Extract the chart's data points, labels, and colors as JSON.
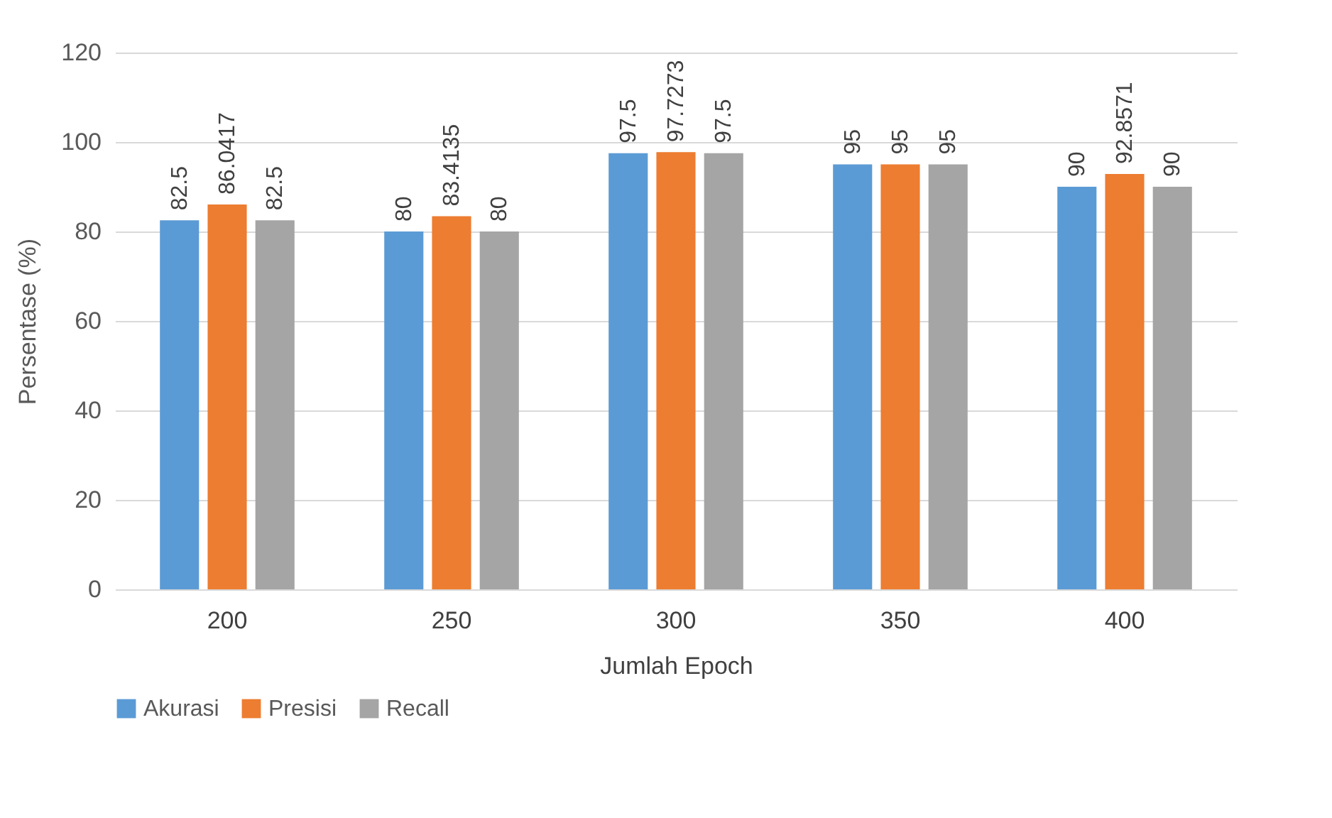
{
  "chart_data": {
    "type": "bar",
    "xlabel": "Jumlah Epoch",
    "ylabel": "Persentase (%)",
    "categories": [
      "200",
      "250",
      "300",
      "350",
      "400"
    ],
    "series": [
      {
        "name": "Akurasi",
        "color": "#5b9bd5",
        "values": [
          82.5,
          80,
          97.5,
          95,
          90
        ]
      },
      {
        "name": "Presisi",
        "color": "#ed7d31",
        "values": [
          86.0417,
          83.4135,
          97.7273,
          95,
          92.8571
        ]
      },
      {
        "name": "Recall",
        "color": "#a5a5a5",
        "values": [
          82.5,
          80,
          97.5,
          95,
          90
        ]
      }
    ],
    "ylim": [
      0,
      120
    ],
    "yticks": [
      0,
      20,
      40,
      60,
      80,
      100,
      120
    ],
    "grid": "y",
    "legend": "bottom",
    "data_labels": true
  }
}
